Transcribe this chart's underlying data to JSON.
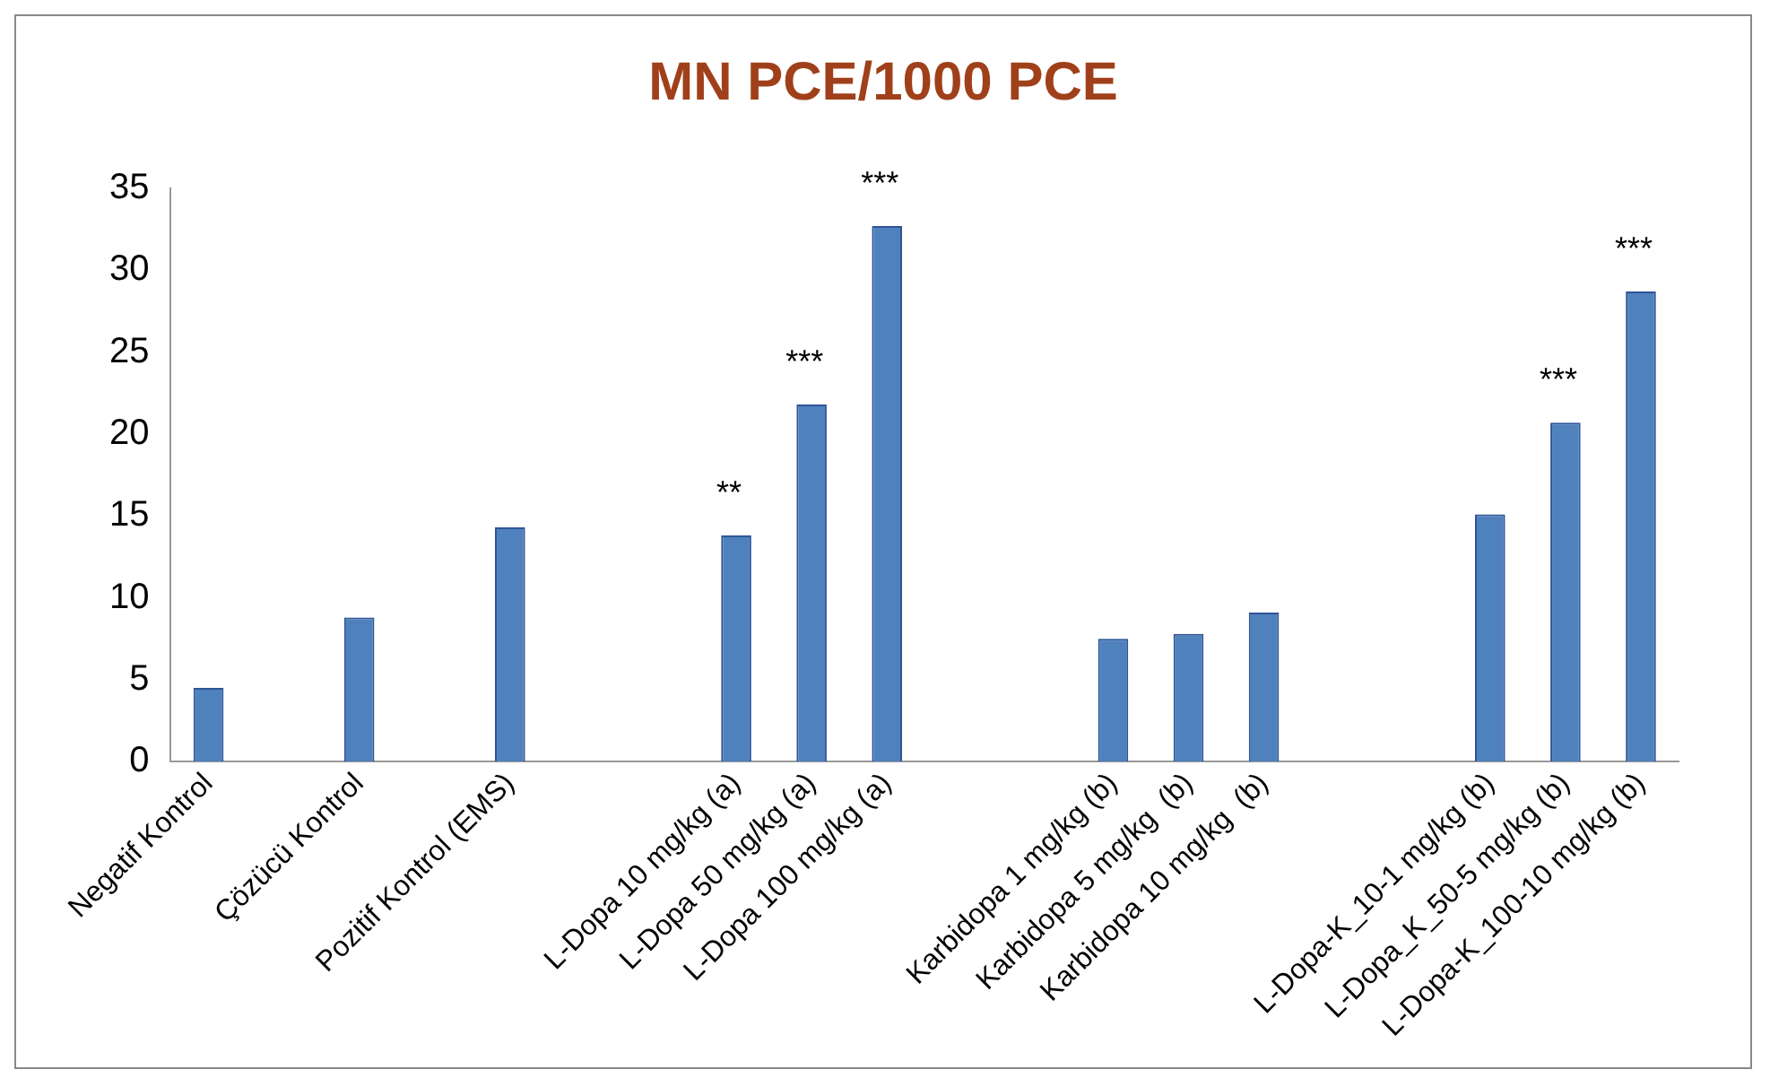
{
  "chart_data": {
    "type": "bar",
    "title": "MN PCE/1000 PCE",
    "categories": [
      "Negatif Kontrol",
      null,
      "Çözücü Kontrol",
      null,
      "Pozitif Kontrol (EMS)",
      null,
      null,
      "L-Dopa 10 mg/kg (a)",
      "L-Dopa 50 mg/kg (a)",
      "L-Dopa 100 mg/kg (a)",
      null,
      null,
      "Karbidopa 1 mg/kg (b)",
      "Karbidopa 5 mg/kg  (b)",
      "Karbidopa 10 mg/kg  (b)",
      null,
      null,
      "L-Dopa-K_10-1 mg/kg (b)",
      "L-Dopa_K_50-5 mg/kg (b)",
      "L-Dopa-K_100-10 mg/kg (b)"
    ],
    "values": [
      4.5,
      null,
      8.8,
      null,
      14.3,
      null,
      null,
      13.8,
      21.8,
      32.7,
      null,
      null,
      7.5,
      7.8,
      9.1,
      null,
      null,
      15.1,
      20.7,
      28.7
    ],
    "color": "#4f81bd",
    "ylim": [
      0,
      35
    ],
    "yticks": [
      0,
      5,
      10,
      15,
      20,
      25,
      30,
      35
    ],
    "grid": false,
    "legend": false,
    "annotations": [
      {
        "text": "**",
        "x": "L-Dopa 10 mg/kg (a)",
        "y": 13.8
      },
      {
        "text": "***",
        "x": "L-Dopa 50 mg/kg (a)",
        "y": 21.8
      },
      {
        "text": "***",
        "x": "L-Dopa 100 mg/kg (a)",
        "y": 32.7
      },
      {
        "text": "***",
        "x": "L-Dopa_K_50-5 mg/kg (b)",
        "y": 20.7
      },
      {
        "text": "***",
        "x": "L-Dopa-K_100-10 mg/kg (b)",
        "y": 28.7
      }
    ]
  }
}
